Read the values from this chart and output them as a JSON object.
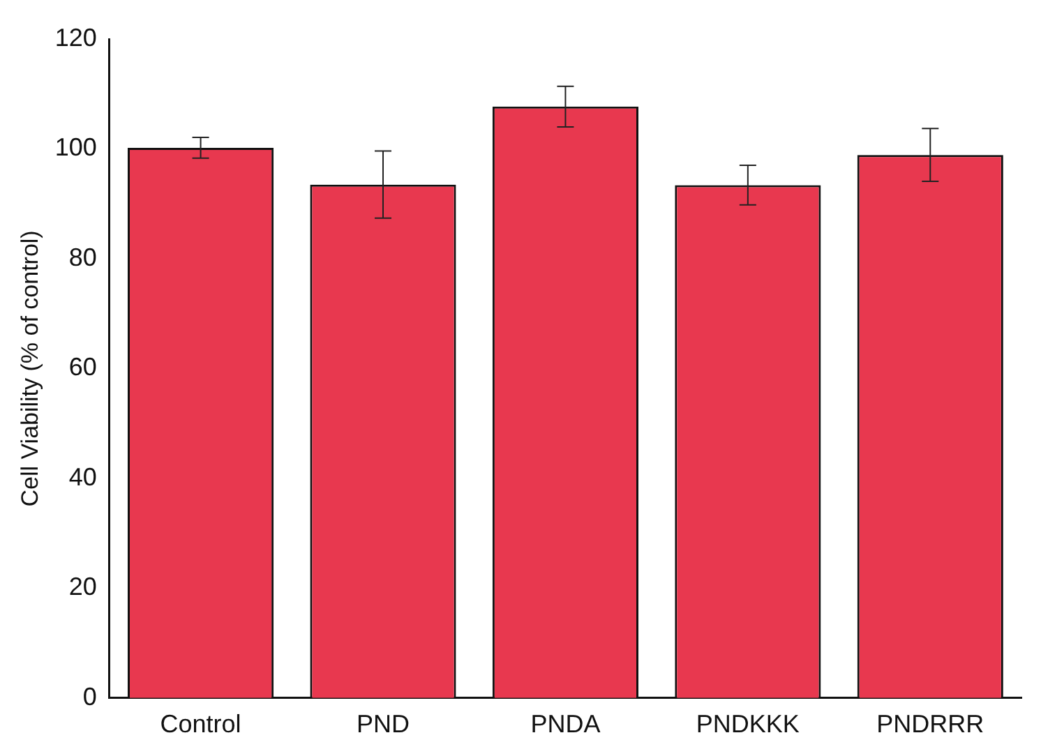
{
  "chart_data": {
    "type": "bar",
    "ylabel": "Cell Viability (% of control)",
    "categories": [
      "Control",
      "PND",
      "PNDA",
      "PNDKKK",
      "PNDRRR"
    ],
    "values": [
      100.2,
      93.5,
      107.7,
      93.4,
      98.9
    ],
    "errors": [
      1.9,
      6.1,
      3.7,
      3.6,
      4.8
    ],
    "color": "#e8384f",
    "ylim": [
      0,
      120
    ],
    "yticks": [
      0,
      20,
      40,
      60,
      80,
      100,
      120
    ],
    "grid": false,
    "legend": false
  }
}
